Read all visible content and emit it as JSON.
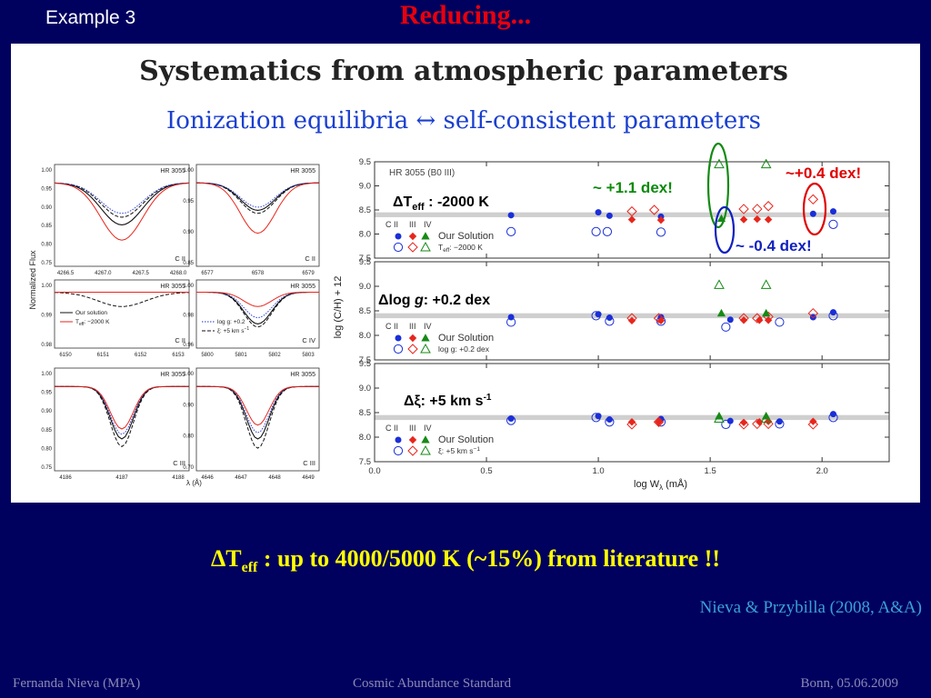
{
  "header": {
    "example_label": "Example 3",
    "title": "Reducing..."
  },
  "panel": {
    "heading": "Systematics from atmospheric parameters",
    "subheading": "Ionization equilibria ↔ self-consistent parameters"
  },
  "left_grid": {
    "ylabel": "Normalized Flux",
    "xlabel": "λ (Å)",
    "star": "HR 3055",
    "legend": {
      "solid": "Our solution",
      "red": "T",
      "red_sub": "eff",
      "red_rest": ": −2000 K",
      "dotted": "log g: +0.2",
      "dashed": "ξ: +5 km s",
      "dashed_sup": "−1"
    },
    "panels": [
      {
        "ion": "C II",
        "yticks": [
          "1.00",
          "0.95",
          "0.90",
          "0.85",
          "0.80",
          "0.75"
        ],
        "xticks": [
          "4266.5",
          "4267.0",
          "4267.5",
          "4268.0"
        ]
      },
      {
        "ion": "C II",
        "yticks": [
          "1.00",
          "0.95",
          "0.90",
          "0.85"
        ],
        "xticks": [
          "6577",
          "6578",
          "6579"
        ]
      },
      {
        "ion": "C II",
        "yticks": [
          "1.00",
          "0.99",
          "0.98"
        ],
        "xticks": [
          "6150",
          "6151",
          "6152",
          "6153"
        ]
      },
      {
        "ion": "C IV",
        "yticks": [
          "1.00",
          "0.98",
          "0.96"
        ],
        "xticks": [
          "5800",
          "5801",
          "5802",
          "5803"
        ]
      },
      {
        "ion": "C III",
        "yticks": [
          "1.00",
          "0.95",
          "0.90",
          "0.85",
          "0.80",
          "0.75"
        ],
        "xticks": [
          "4186",
          "4187",
          "4188"
        ]
      },
      {
        "ion": "C III",
        "yticks": [
          "1.00",
          "0.90",
          "0.80",
          "0.70"
        ],
        "xticks": [
          "4646",
          "4647",
          "4648",
          "4649"
        ]
      }
    ]
  },
  "annotations": {
    "plus_1_1": "~ +1.1 dex!",
    "plus_0_4": "~+0.4 dex!",
    "minus_0_4": "~ -0.4 dex!",
    "delta_teff_pre": "ΔT",
    "delta_teff_sub": "eff",
    "delta_teff_post": " : -2000 K",
    "delta_logg_pre": "Δlog ",
    "delta_logg_g": "g",
    "delta_logg_post": ": +0.2 dex",
    "delta_xi_pre": "Δξ: +5 km s",
    "delta_xi_sup": "-1"
  },
  "conclusion": {
    "pre": "ΔT",
    "sub": "eff",
    "post": " : up to 4000/5000 K (~15%) from literature !!"
  },
  "citation": "Nieva & Przybilla (2008, A&A)",
  "footer": {
    "author": "Fernanda Nieva (MPA)",
    "talk": "Cosmic Abundance Standard",
    "place_date": "Bonn, 05.06.2009"
  },
  "chart_data": {
    "type": "scatter",
    "xlabel": "log W",
    "xlabel_sub": "λ",
    "xlabel_unit": " (mÅ)",
    "ylabel": "log (C/H) + 12",
    "xlim": [
      0.0,
      2.3
    ],
    "ylim": [
      7.5,
      9.5
    ],
    "xticks": [
      "0.0",
      "0.5",
      "1.0",
      "1.5",
      "2.0"
    ],
    "yticks": [
      "7.5",
      "8.0",
      "8.5",
      "9.0",
      "9.5"
    ],
    "band": [
      8.35,
      8.45
    ],
    "series_labels": {
      "c2": "C II",
      "c3": "III",
      "c4": "IV",
      "our": "Our Solution"
    },
    "panels": [
      {
        "star_label": "HR 3055  (B0 III)",
        "variant_label": "T",
        "variant_sub": "eff",
        "variant_rest": ":  −2000 K",
        "our": {
          "c2": [
            [
              0.61,
              8.39
            ],
            [
              1.0,
              8.45
            ],
            [
              1.05,
              8.38
            ],
            [
              1.28,
              8.36
            ],
            [
              1.96,
              8.42
            ],
            [
              2.05,
              8.47
            ]
          ],
          "c3": [
            [
              1.15,
              8.3
            ],
            [
              1.28,
              8.29
            ],
            [
              1.65,
              8.3
            ],
            [
              1.71,
              8.31
            ],
            [
              1.76,
              8.3
            ]
          ],
          "c4": [
            [
              1.55,
              8.32
            ]
          ]
        },
        "variant": {
          "c2": [
            [
              0.61,
              8.05
            ],
            [
              0.99,
              8.05
            ],
            [
              1.04,
              8.05
            ],
            [
              1.28,
              8.04
            ],
            [
              2.05,
              8.2
            ]
          ],
          "c3": [
            [
              1.15,
              8.47
            ],
            [
              1.25,
              8.5
            ],
            [
              1.65,
              8.52
            ],
            [
              1.71,
              8.52
            ],
            [
              1.76,
              8.58
            ],
            [
              1.96,
              8.72
            ]
          ],
          "c4": [
            [
              1.54,
              9.45
            ],
            [
              1.75,
              9.45
            ]
          ]
        }
      },
      {
        "star_label": "",
        "variant_label": "log g:  +0.2 dex",
        "variant_sub": "",
        "variant_rest": "",
        "our": {
          "c2": [
            [
              0.61,
              8.37
            ],
            [
              1.0,
              8.43
            ],
            [
              1.05,
              8.36
            ],
            [
              1.28,
              8.37
            ],
            [
              1.59,
              8.32
            ],
            [
              1.96,
              8.37
            ],
            [
              2.05,
              8.47
            ]
          ],
          "c3": [
            [
              1.15,
              8.3
            ],
            [
              1.28,
              8.3
            ],
            [
              1.65,
              8.31
            ],
            [
              1.72,
              8.31
            ],
            [
              1.76,
              8.31
            ]
          ],
          "c4": [
            [
              1.55,
              8.45
            ],
            [
              1.75,
              8.45
            ]
          ]
        },
        "variant": {
          "c2": [
            [
              0.61,
              8.27
            ],
            [
              0.99,
              8.4
            ],
            [
              1.05,
              8.29
            ],
            [
              1.28,
              8.29
            ],
            [
              1.57,
              8.17
            ],
            [
              1.81,
              8.27
            ],
            [
              2.05,
              8.4
            ]
          ],
          "c3": [
            [
              1.15,
              8.35
            ],
            [
              1.27,
              8.35
            ],
            [
              1.65,
              8.35
            ],
            [
              1.71,
              8.35
            ],
            [
              1.76,
              8.38
            ],
            [
              1.96,
              8.45
            ]
          ],
          "c4": [
            [
              1.54,
              9.03
            ],
            [
              1.75,
              9.03
            ]
          ]
        }
      },
      {
        "star_label": "",
        "variant_label": "ξ:  +5 km s",
        "variant_sub": "",
        "variant_rest": "−1",
        "our": {
          "c2": [
            [
              0.61,
              8.38
            ],
            [
              1.0,
              8.43
            ],
            [
              1.05,
              8.36
            ],
            [
              1.28,
              8.37
            ],
            [
              1.59,
              8.33
            ],
            [
              1.81,
              8.32
            ],
            [
              2.05,
              8.47
            ]
          ],
          "c3": [
            [
              1.15,
              8.31
            ],
            [
              1.27,
              8.31
            ],
            [
              1.65,
              8.3
            ],
            [
              1.72,
              8.31
            ],
            [
              1.76,
              8.32
            ],
            [
              1.96,
              8.32
            ]
          ],
          "c4": [
            [
              1.54,
              8.43
            ],
            [
              1.75,
              8.43
            ]
          ]
        },
        "variant": {
          "c2": [
            [
              0.61,
              8.34
            ],
            [
              0.99,
              8.4
            ],
            [
              1.05,
              8.31
            ],
            [
              1.28,
              8.31
            ],
            [
              1.57,
              8.26
            ],
            [
              1.81,
              8.27
            ],
            [
              2.05,
              8.4
            ]
          ],
          "c3": [
            [
              1.15,
              8.26
            ],
            [
              1.27,
              8.31
            ],
            [
              1.65,
              8.26
            ],
            [
              1.71,
              8.27
            ],
            [
              1.76,
              8.27
            ],
            [
              1.96,
              8.26
            ]
          ],
          "c4": [
            [
              1.54,
              8.38
            ],
            [
              1.75,
              8.38
            ]
          ]
        }
      }
    ]
  }
}
